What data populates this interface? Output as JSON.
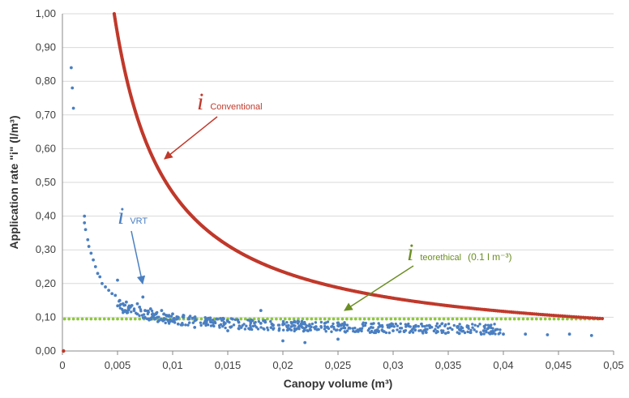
{
  "chart_data": {
    "type": "scatter",
    "xlabel": "Canopy volume (m³)",
    "ylabel": "Application rate \"i\" (l/m³)",
    "xlim": [
      0,
      0.05
    ],
    "ylim": [
      0,
      1.0
    ],
    "x_ticks": [
      "0",
      "0,005",
      "0,01",
      "0,015",
      "0,02",
      "0,025",
      "0,03",
      "0,035",
      "0,04",
      "0,045",
      "0,05"
    ],
    "y_ticks": [
      "0,00",
      "0,10",
      "0,20",
      "0,30",
      "0,40",
      "0,50",
      "0,60",
      "0,70",
      "0,80",
      "0,90",
      "1,00"
    ],
    "grid": "horizontal",
    "legend": "none",
    "series": [
      {
        "name": "i Conventional",
        "color": "#c0392b",
        "curve": "y = 0.0047 / x",
        "x_range": [
          0.0047,
          0.049
        ],
        "outliers": [
          {
            "x": 0.0001,
            "y": 0.0
          }
        ]
      },
      {
        "name": "i VRT",
        "color": "#4a7fc1",
        "points": [
          [
            0.0008,
            0.84
          ],
          [
            0.0009,
            0.78
          ],
          [
            0.001,
            0.72
          ],
          [
            0.002,
            0.4
          ],
          [
            0.002,
            0.38
          ],
          [
            0.0021,
            0.36
          ],
          [
            0.0023,
            0.33
          ],
          [
            0.0024,
            0.31
          ],
          [
            0.0026,
            0.29
          ],
          [
            0.0028,
            0.27
          ],
          [
            0.003,
            0.25
          ],
          [
            0.0032,
            0.23
          ],
          [
            0.0034,
            0.22
          ],
          [
            0.0036,
            0.2
          ],
          [
            0.0039,
            0.19
          ],
          [
            0.0042,
            0.18
          ],
          [
            0.0045,
            0.17
          ],
          [
            0.0048,
            0.165
          ],
          [
            0.005,
            0.21
          ],
          [
            0.0052,
            0.15
          ],
          [
            0.0055,
            0.14
          ],
          [
            0.0058,
            0.145
          ],
          [
            0.006,
            0.13
          ],
          [
            0.0063,
            0.135
          ],
          [
            0.0065,
            0.12
          ],
          [
            0.0068,
            0.14
          ],
          [
            0.007,
            0.13
          ],
          [
            0.0073,
            0.16
          ],
          [
            0.0075,
            0.12
          ],
          [
            0.0078,
            0.115
          ],
          [
            0.008,
            0.125
          ],
          [
            0.0085,
            0.11
          ],
          [
            0.009,
            0.12
          ],
          [
            0.0095,
            0.105
          ],
          [
            0.01,
            0.11
          ],
          [
            0.0105,
            0.1
          ],
          [
            0.011,
            0.105
          ],
          [
            0.0115,
            0.095
          ],
          [
            0.012,
            0.1
          ],
          [
            0.013,
            0.09
          ],
          [
            0.014,
            0.095
          ],
          [
            0.015,
            0.088
          ],
          [
            0.016,
            0.085
          ],
          [
            0.017,
            0.09
          ],
          [
            0.018,
            0.082
          ],
          [
            0.019,
            0.08
          ],
          [
            0.02,
            0.078
          ],
          [
            0.021,
            0.075
          ],
          [
            0.022,
            0.08
          ],
          [
            0.023,
            0.072
          ],
          [
            0.024,
            0.07
          ],
          [
            0.025,
            0.075
          ],
          [
            0.026,
            0.068
          ],
          [
            0.027,
            0.065
          ],
          [
            0.028,
            0.07
          ],
          [
            0.029,
            0.062
          ],
          [
            0.03,
            0.06
          ],
          [
            0.031,
            0.058
          ],
          [
            0.032,
            0.062
          ],
          [
            0.033,
            0.055
          ],
          [
            0.034,
            0.058
          ],
          [
            0.035,
            0.055
          ],
          [
            0.036,
            0.052
          ],
          [
            0.037,
            0.055
          ],
          [
            0.038,
            0.05
          ],
          [
            0.039,
            0.052
          ],
          [
            0.04,
            0.05
          ],
          [
            0.042,
            0.05
          ],
          [
            0.044,
            0.048
          ],
          [
            0.046,
            0.05
          ],
          [
            0.048,
            0.046
          ],
          [
            0.018,
            0.12
          ],
          [
            0.02,
            0.03
          ],
          [
            0.022,
            0.025
          ],
          [
            0.025,
            0.035
          ],
          [
            0.0105,
            0.08
          ],
          [
            0.012,
            0.07
          ],
          [
            0.015,
            0.06
          ],
          [
            0.017,
            0.065
          ]
        ]
      },
      {
        "name": "i teorethical (0.1 l m⁻³)",
        "color": "#8dc63f",
        "constant_y": 0.095,
        "x_range": [
          0.0002,
          0.0488
        ]
      }
    ],
    "annotations": [
      {
        "main": "i",
        "sub": "Conventional",
        "extra": "",
        "color": "#c0392b"
      },
      {
        "main": "i",
        "sub": "VRT",
        "extra": "",
        "color": "#4a7fc1"
      },
      {
        "main": "i",
        "sub": "teorethical",
        "extra": "(0.1 l m⁻³)",
        "color": "#6b8e23"
      }
    ]
  }
}
